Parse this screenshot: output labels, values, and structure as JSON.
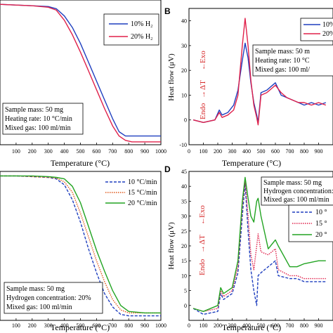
{
  "colors": {
    "blue": "#1f3fbf",
    "red": "#e0204a",
    "orange": "#e0581a",
    "green": "#22a422",
    "exo_endo": "#d62728"
  },
  "chart_data": [
    {
      "id": "A",
      "panel_label": "",
      "type": "line",
      "xlabel": "Temperature (°C)",
      "ylabel": "",
      "xlim": [
        0,
        1000
      ],
      "ylim": [
        0,
        100
      ],
      "xticks": [
        "100",
        "200",
        "300",
        "400",
        "500",
        "600",
        "700",
        "800",
        "900",
        "1000"
      ],
      "yticks": [],
      "legend": "top-right",
      "annotations": [
        "Sample mass: 50 mg",
        "Heating rate: 10 °C/min",
        "Mixed gas: 100 ml/min"
      ],
      "series": [
        {
          "name": "10% H₂",
          "color_key": "blue",
          "style": "solid",
          "x": [
            0,
            100,
            200,
            300,
            350,
            400,
            450,
            500,
            550,
            600,
            650,
            700,
            740,
            780,
            820,
            900,
            1000
          ],
          "y": [
            97,
            96.5,
            96,
            95.5,
            94,
            89,
            81,
            70,
            57,
            44,
            31,
            18,
            9,
            6,
            6,
            6,
            6
          ]
        },
        {
          "name": "20% H₂",
          "color_key": "red",
          "style": "solid",
          "x": [
            0,
            100,
            200,
            300,
            350,
            400,
            450,
            500,
            550,
            600,
            650,
            700,
            740,
            780,
            820,
            900,
            1000
          ],
          "y": [
            97,
            96.5,
            96,
            95,
            93,
            86,
            76,
            64,
            51,
            38,
            25,
            13,
            6,
            3,
            2,
            2,
            2
          ]
        }
      ]
    },
    {
      "id": "B",
      "panel_label": "B",
      "type": "line",
      "xlabel": "Temperature (°C)",
      "ylabel": "Heat flow (μV)",
      "xlim": [
        0,
        1000
      ],
      "ylim": [
        -10,
        45
      ],
      "xticks": [
        "0",
        "100",
        "200",
        "300",
        "400",
        "500",
        "600",
        "700",
        "800",
        "900"
      ],
      "yticks": [
        "-10",
        "0",
        "10",
        "20",
        "30",
        "40"
      ],
      "legend": "top-right",
      "legend_entries": [
        "10%",
        "20%"
      ],
      "side_text": {
        "exo": "Exo",
        "delta": "ΔT",
        "endo": "Endo"
      },
      "annotations": [
        "Sample mass: 50 m",
        "Heating rate: 10 °C",
        "Mixed gas: 100 ml/"
      ],
      "series": [
        {
          "name": "10%",
          "color_key": "blue",
          "style": "solid",
          "x": [
            30,
            100,
            180,
            210,
            230,
            270,
            310,
            340,
            370,
            390,
            410,
            430,
            450,
            470,
            480,
            500,
            540,
            580,
            600,
            640,
            680,
            720,
            760,
            800,
            850,
            900,
            950
          ],
          "y": [
            0,
            -1,
            0,
            4,
            2,
            3,
            6,
            12,
            24,
            31,
            25,
            15,
            7,
            2,
            -1,
            11,
            12,
            14,
            15,
            10,
            9,
            8,
            7,
            6,
            7,
            6,
            7
          ]
        },
        {
          "name": "20%",
          "color_key": "red",
          "style": "solid",
          "x": [
            30,
            100,
            180,
            210,
            230,
            270,
            310,
            340,
            370,
            390,
            410,
            430,
            450,
            470,
            480,
            500,
            540,
            580,
            600,
            640,
            680,
            720,
            760,
            800,
            850,
            900,
            950
          ],
          "y": [
            0,
            -1,
            0,
            3,
            1,
            2,
            4,
            10,
            30,
            41,
            30,
            16,
            6,
            1,
            -2,
            10,
            11,
            13,
            14,
            11,
            9,
            8,
            7,
            7,
            6,
            7,
            6
          ]
        }
      ]
    },
    {
      "id": "C",
      "panel_label": "",
      "type": "line",
      "xlabel": "Temperature (°C)",
      "ylabel": "",
      "xlim": [
        0,
        1000
      ],
      "ylim": [
        0,
        100
      ],
      "xticks": [
        "100",
        "200",
        "300",
        "400",
        "500",
        "600",
        "700",
        "800",
        "900",
        "1000"
      ],
      "yticks": [],
      "legend": "top-right",
      "annotations": [
        "Sample mass: 50 mg",
        "Hydrogen concentration: 20%",
        "Mixed gas: 100 ml/min"
      ],
      "series": [
        {
          "name": "10 °C/min",
          "color_key": "blue",
          "style": "dashed",
          "x": [
            0,
            100,
            200,
            300,
            350,
            400,
            450,
            500,
            550,
            600,
            650,
            700,
            750,
            800,
            900,
            1000
          ],
          "y": [
            97,
            97,
            96.5,
            96,
            95,
            91,
            81,
            66,
            48,
            32,
            18,
            9,
            4,
            3,
            3,
            3
          ]
        },
        {
          "name": "15 °C/min",
          "color_key": "orange",
          "style": "dotted",
          "x": [
            0,
            100,
            200,
            300,
            350,
            400,
            450,
            500,
            550,
            600,
            650,
            700,
            750,
            800,
            900,
            1000
          ],
          "y": [
            97,
            97,
            96.5,
            96,
            95.5,
            93,
            86,
            72,
            56,
            40,
            26,
            14,
            7,
            5,
            5,
            5
          ]
        },
        {
          "name": "20 °C/min",
          "color_key": "green",
          "style": "solid",
          "x": [
            0,
            100,
            200,
            300,
            350,
            400,
            450,
            500,
            550,
            600,
            650,
            700,
            750,
            800,
            900,
            1000
          ],
          "y": [
            97,
            97,
            97,
            96.5,
            96,
            95,
            90,
            79,
            63,
            47,
            33,
            20,
            10,
            6,
            5,
            5
          ]
        }
      ]
    },
    {
      "id": "D",
      "panel_label": "D",
      "type": "line",
      "xlabel": "Temperature (°C)",
      "ylabel": "Heat flow (μV)",
      "xlim": [
        0,
        1000
      ],
      "ylim": [
        -5,
        45
      ],
      "xticks": [
        "0",
        "100",
        "200",
        "300",
        "400",
        "500",
        "600",
        "700",
        "800",
        "900"
      ],
      "yticks": [
        "0",
        "5",
        "10",
        "15",
        "20",
        "25",
        "30",
        "35",
        "40",
        "45"
      ],
      "legend": "right",
      "legend_entries": [
        "10 °",
        "15 °",
        "20 °"
      ],
      "side_text": {
        "exo": "Exo",
        "delta": "ΔT",
        "endo": "Endo"
      },
      "annotations": [
        "Sample mass: 50 mg",
        "Hydrogen concentration:",
        "Mixed gas: 100 ml/min"
      ],
      "series": [
        {
          "name": "10 °",
          "color_key": "blue",
          "style": "dashed",
          "x": [
            30,
            100,
            200,
            220,
            240,
            300,
            340,
            370,
            390,
            410,
            430,
            450,
            470,
            480,
            500,
            550,
            600,
            620,
            700,
            750,
            800,
            900,
            950
          ],
          "y": [
            -1,
            -3,
            -2,
            4,
            2,
            4,
            11,
            30,
            41,
            25,
            12,
            5,
            0,
            10,
            11,
            13,
            15,
            10,
            9,
            9,
            8,
            8,
            8
          ]
        },
        {
          "name": "15 °",
          "color_key": "red",
          "style": "dotted",
          "x": [
            30,
            100,
            200,
            220,
            240,
            300,
            340,
            370,
            390,
            410,
            430,
            450,
            470,
            480,
            500,
            550,
            600,
            620,
            700,
            750,
            800,
            900,
            950
          ],
          "y": [
            -1,
            -2,
            -1,
            5,
            3,
            5,
            13,
            33,
            42,
            30,
            17,
            12,
            20,
            24,
            18,
            17,
            19,
            12,
            10,
            10,
            9,
            9,
            9
          ]
        },
        {
          "name": "20 °",
          "color_key": "green",
          "style": "solid",
          "x": [
            30,
            100,
            200,
            220,
            240,
            300,
            340,
            370,
            390,
            410,
            430,
            450,
            470,
            480,
            500,
            550,
            600,
            620,
            700,
            750,
            800,
            900,
            950
          ],
          "y": [
            -1,
            -2,
            0,
            6,
            4,
            6,
            15,
            35,
            43,
            36,
            30,
            28,
            35,
            36,
            30,
            19,
            22,
            20,
            13,
            13,
            14,
            15,
            15
          ]
        }
      ]
    }
  ]
}
